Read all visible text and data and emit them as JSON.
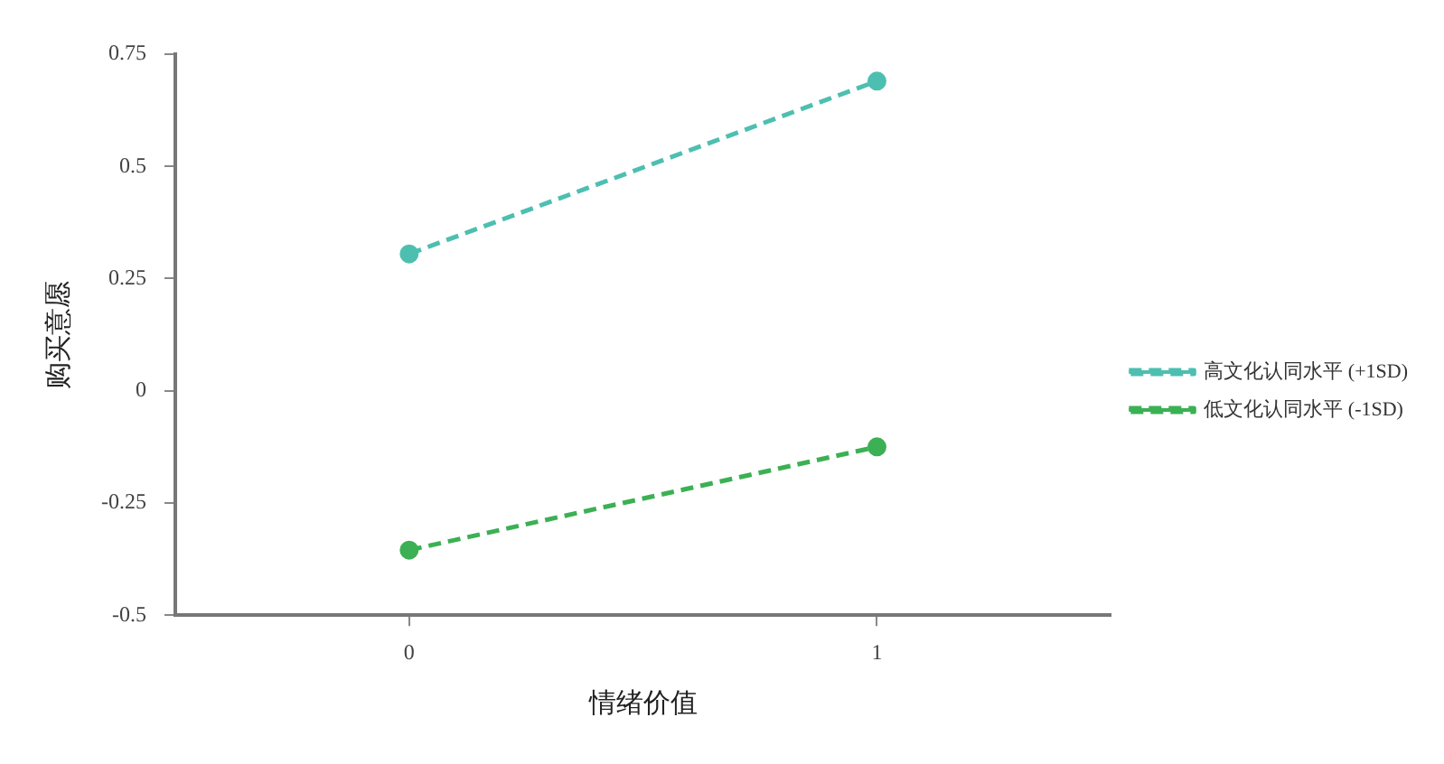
{
  "chart_data": {
    "type": "line",
    "xlabel": "情绪价值",
    "ylabel": "购买意愿",
    "x": [
      0,
      1
    ],
    "series": [
      {
        "name": "高文化认同水平 (+1SD)",
        "color": "#4dbfb0",
        "values": [
          0.305,
          0.69
        ],
        "line_style": "dashed"
      },
      {
        "name": "低文化认同水平 (-1SD)",
        "color": "#3cb054",
        "values": [
          -0.355,
          -0.125
        ],
        "line_style": "dashed"
      }
    ],
    "xlim": [
      -0.5,
      1.5
    ],
    "xticks": [
      0,
      1
    ],
    "ylim": [
      -0.5,
      0.75
    ],
    "yticks": [
      -0.5,
      -0.25,
      0,
      0.25,
      0.5,
      0.75
    ],
    "grid": false,
    "legend": "right",
    "marker": "circle"
  }
}
